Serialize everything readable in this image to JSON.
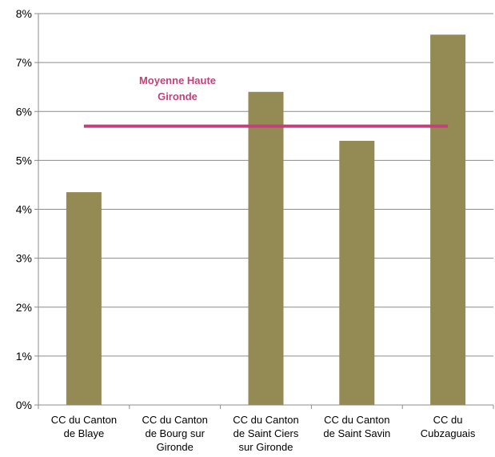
{
  "chart_data": {
    "type": "bar",
    "categories": [
      [
        "CC du Canton",
        "de Blaye"
      ],
      [
        "CC du Canton",
        "de Bourg sur",
        "Gironde"
      ],
      [
        "CC du Canton",
        "de Saint Ciers",
        "sur Gironde"
      ],
      [
        "CC du Canton",
        "de Saint Savin"
      ],
      [
        "CC du",
        "Cubzaguais"
      ]
    ],
    "values": [
      4.35,
      null,
      6.4,
      5.4,
      7.57
    ],
    "ylim": [
      0,
      8
    ],
    "yticks": [
      0,
      1,
      2,
      3,
      4,
      5,
      6,
      7,
      8
    ],
    "tick_suffix": "%",
    "grid": true,
    "bar_color": "#948A54",
    "reference_line": {
      "label": [
        "Moyenne Haute",
        "Gironde"
      ],
      "value": 5.7,
      "color": "#C0427A"
    }
  }
}
